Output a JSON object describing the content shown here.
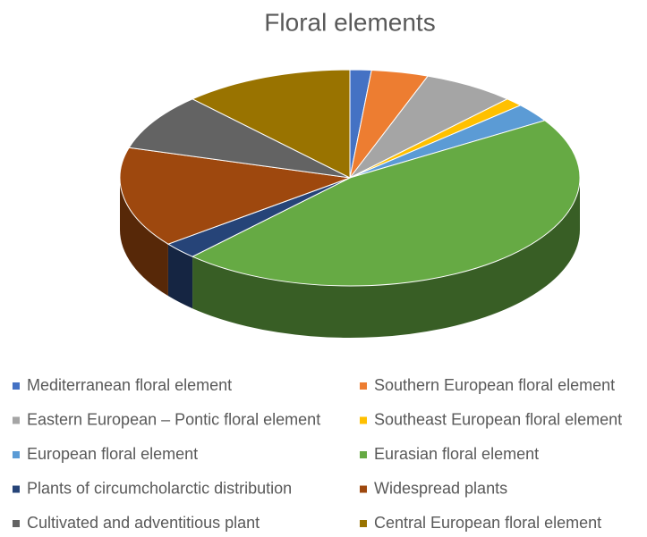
{
  "chart_data": {
    "type": "pie",
    "title": "Floral elements",
    "categories": [
      "Mediterranean floral element",
      "Southern European floral element",
      "Eastern European – Pontic floral element",
      "Southeast European floral element",
      "European floral element",
      "Eurasian floral element",
      "Plants of circumcholarctic distribution",
      "Widespread plants",
      "Cultivated and adventitious plant",
      "Central European floral element"
    ],
    "values": [
      1.5,
      4,
      6.5,
      1.3,
      2.8,
      45.9,
      2.5,
      15,
      8.5,
      12
    ],
    "colors": [
      "#4472c4",
      "#ed7d31",
      "#a5a5a5",
      "#ffc000",
      "#5b9bd5",
      "#66aa44",
      "#264478",
      "#9e480e",
      "#636363",
      "#997300"
    ],
    "legend": "bottom"
  }
}
